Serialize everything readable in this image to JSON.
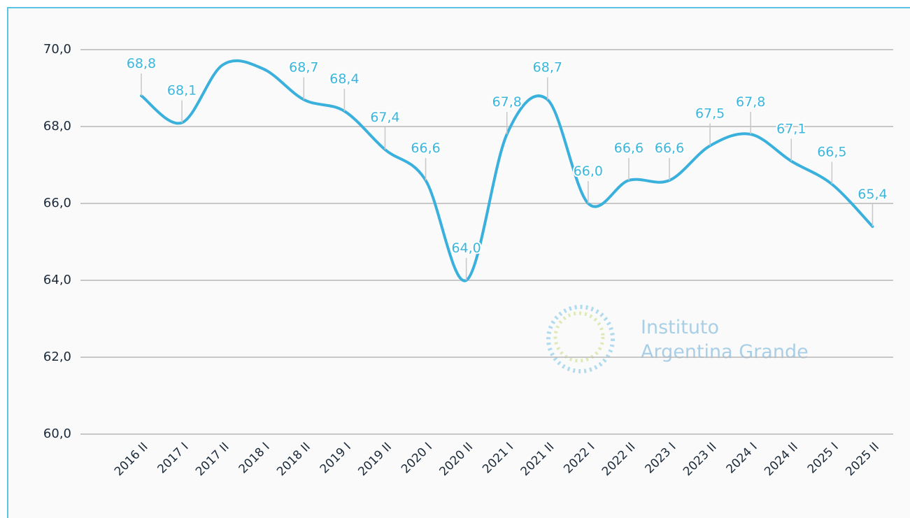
{
  "chart_data": {
    "type": "line",
    "categories": [
      "2016 II",
      "2017 I",
      "2017 II",
      "2018 I",
      "2018 II",
      "2019 I",
      "2019 II",
      "2020 I",
      "2020 II",
      "2021 I",
      "2021 II",
      "2022 I",
      "2022 II",
      "2023 I",
      "2023 II",
      "2024 I",
      "2024 II",
      "2025 I",
      "2025 II"
    ],
    "values": [
      68.8,
      68.1,
      69.6,
      69.5,
      68.7,
      68.4,
      67.4,
      66.6,
      64.0,
      67.8,
      68.7,
      66.0,
      66.6,
      66.6,
      67.5,
      67.8,
      67.1,
      66.5,
      65.4
    ],
    "value_labels": [
      "68,8",
      "68,1",
      null,
      null,
      "68,7",
      "68,4",
      "67,4",
      "66,6",
      "64,0",
      "67,8",
      "68,7",
      "66,0",
      "66,6",
      "66,6",
      "67,5",
      "67,8",
      "67,1",
      "66,5",
      "65,4"
    ],
    "color": "#3ab0dc",
    "ylim": [
      60,
      70
    ],
    "yticks": [
      {
        "value": 60,
        "label": "60,0"
      },
      {
        "value": 62,
        "label": "62,0"
      },
      {
        "value": 64,
        "label": "64,0"
      },
      {
        "value": 66,
        "label": "66,0"
      },
      {
        "value": 68,
        "label": "68,0"
      },
      {
        "value": 70,
        "label": "70,0"
      }
    ],
    "grid": true,
    "watermark": [
      "Instituto",
      "Argentina Grande"
    ]
  }
}
